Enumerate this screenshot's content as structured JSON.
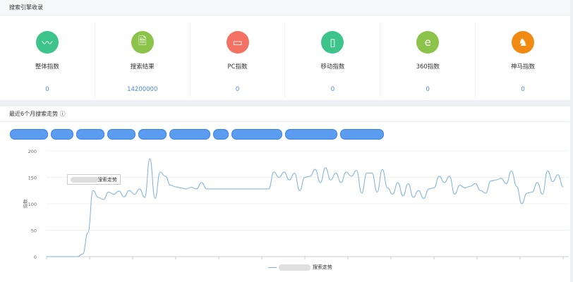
{
  "summary": {
    "title": "搜索引擎收录",
    "items": [
      {
        "label": "整体指数",
        "value": "0",
        "icon": "trend-line-icon",
        "color": "#3cc48a"
      },
      {
        "label": "搜索结果",
        "value": "14200000",
        "icon": "document-search-icon",
        "color": "#8cc34a"
      },
      {
        "label": "PC指数",
        "value": "0",
        "icon": "monitor-icon",
        "color": "#f47263"
      },
      {
        "label": "移动指数",
        "value": "0",
        "icon": "mobile-phone-icon",
        "color": "#3cc48a"
      },
      {
        "label": "360指数",
        "value": "0",
        "icon": "ie-browser-icon",
        "color": "#8cc34a"
      },
      {
        "label": "神马指数",
        "value": "0",
        "icon": "alpaca-icon",
        "color": "#f08a12"
      }
    ]
  },
  "trend": {
    "title": "最近6个月搜索走势 ⓘ",
    "tooltip": "搜索走势",
    "legend": "搜索走势"
  },
  "chart_data": {
    "type": "line",
    "ylabel": "指数",
    "ylim": [
      0,
      200
    ],
    "yticks": [
      "0",
      "50",
      "100",
      "150",
      "200"
    ],
    "grid": true,
    "legend": "bottom-center",
    "color": "#7fb1d8",
    "series": [
      {
        "name": "搜索走势",
        "values": [
          0,
          0,
          0,
          0,
          0,
          0,
          0,
          5,
          45,
          125,
          112,
          108,
          122,
          118,
          124,
          113,
          125,
          118,
          128,
          112,
          185,
          110,
          160,
          152,
          135,
          132,
          130,
          128,
          131,
          128,
          140,
          128,
          128,
          128,
          128,
          128,
          128,
          128,
          128,
          128,
          128,
          128,
          128,
          128,
          160,
          150,
          160,
          145,
          158,
          125,
          150,
          152,
          165,
          140,
          168,
          145,
          158,
          140,
          160,
          152,
          163,
          120,
          158,
          158,
          122,
          165,
          130,
          118,
          140,
          115,
          138,
          112,
          125,
          110,
          128,
          130,
          152,
          140,
          152,
          118,
          135,
          130,
          133,
          138,
          125,
          120,
          143,
          145,
          148,
          138,
          162,
          133,
          100,
          120,
          122,
          140,
          118,
          162,
          142,
          155,
          132
        ]
      }
    ]
  }
}
